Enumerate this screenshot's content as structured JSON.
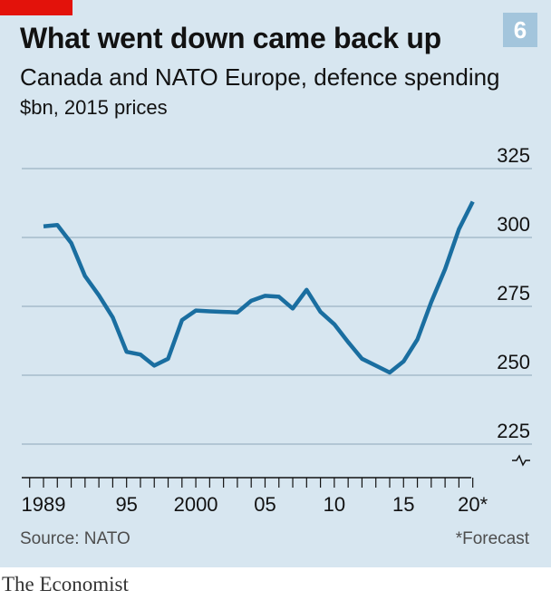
{
  "header": {
    "title": "What went down came back up",
    "subtitle": "Canada and NATO Europe, defence spending",
    "units": "$bn, 2015 prices",
    "chart_number": "6"
  },
  "footer": {
    "source": "Source: NATO",
    "footnote": "*Forecast",
    "brand": "The Economist"
  },
  "colors": {
    "background": "#d7e6f0",
    "line": "#1a6ea0",
    "accent": "#e3120b",
    "badge": "#a3c5dc"
  },
  "chart_data": {
    "type": "line",
    "title": "What went down came back up",
    "subtitle": "Canada and NATO Europe, defence spending",
    "ylabel": "$bn, 2015 prices",
    "xlabel": "",
    "ylim": [
      225,
      325
    ],
    "xlim": [
      1988,
      2021
    ],
    "y_axis_broken": true,
    "grid": true,
    "y_ticks": [
      {
        "value": 225,
        "label": "225"
      },
      {
        "value": 250,
        "label": "250"
      },
      {
        "value": 275,
        "label": "275"
      },
      {
        "value": 300,
        "label": "300"
      },
      {
        "value": 325,
        "label": "325"
      }
    ],
    "x_tick_labels": [
      {
        "value": 1989,
        "label": "1989"
      },
      {
        "value": 1995,
        "label": "95"
      },
      {
        "value": 2000,
        "label": "2000"
      },
      {
        "value": 2005,
        "label": "05"
      },
      {
        "value": 2010,
        "label": "10"
      },
      {
        "value": 2015,
        "label": "15"
      },
      {
        "value": 2020,
        "label": "20*"
      }
    ],
    "x_minor_ticks": [
      1988,
      1989,
      1990,
      1991,
      1992,
      1993,
      1994,
      1995,
      1996,
      1997,
      1998,
      1999,
      2000,
      2001,
      2002,
      2003,
      2004,
      2005,
      2006,
      2007,
      2008,
      2009,
      2010,
      2011,
      2012,
      2013,
      2014,
      2015,
      2016,
      2017,
      2018,
      2019,
      2020
    ],
    "series": [
      {
        "x": [
          1989,
          1990,
          1991,
          1992,
          1993,
          1994,
          1995,
          1996,
          1997,
          1998,
          1999,
          2000,
          2001,
          2002,
          2003,
          2004,
          2005,
          2006,
          2007,
          2008,
          2009,
          2010,
          2011,
          2012,
          2013,
          2014,
          2015,
          2016,
          2017,
          2018,
          2019,
          2020
        ],
        "values": [
          304,
          304.5,
          298,
          286,
          279,
          271,
          258.5,
          257.5,
          253.5,
          256,
          270,
          273.5,
          273.2,
          273,
          272.8,
          277,
          278.8,
          278.5,
          274.2,
          281,
          273,
          268.5,
          262,
          256,
          253.5,
          251,
          255,
          263,
          276.5,
          288.5,
          303,
          313
        ]
      }
    ]
  }
}
